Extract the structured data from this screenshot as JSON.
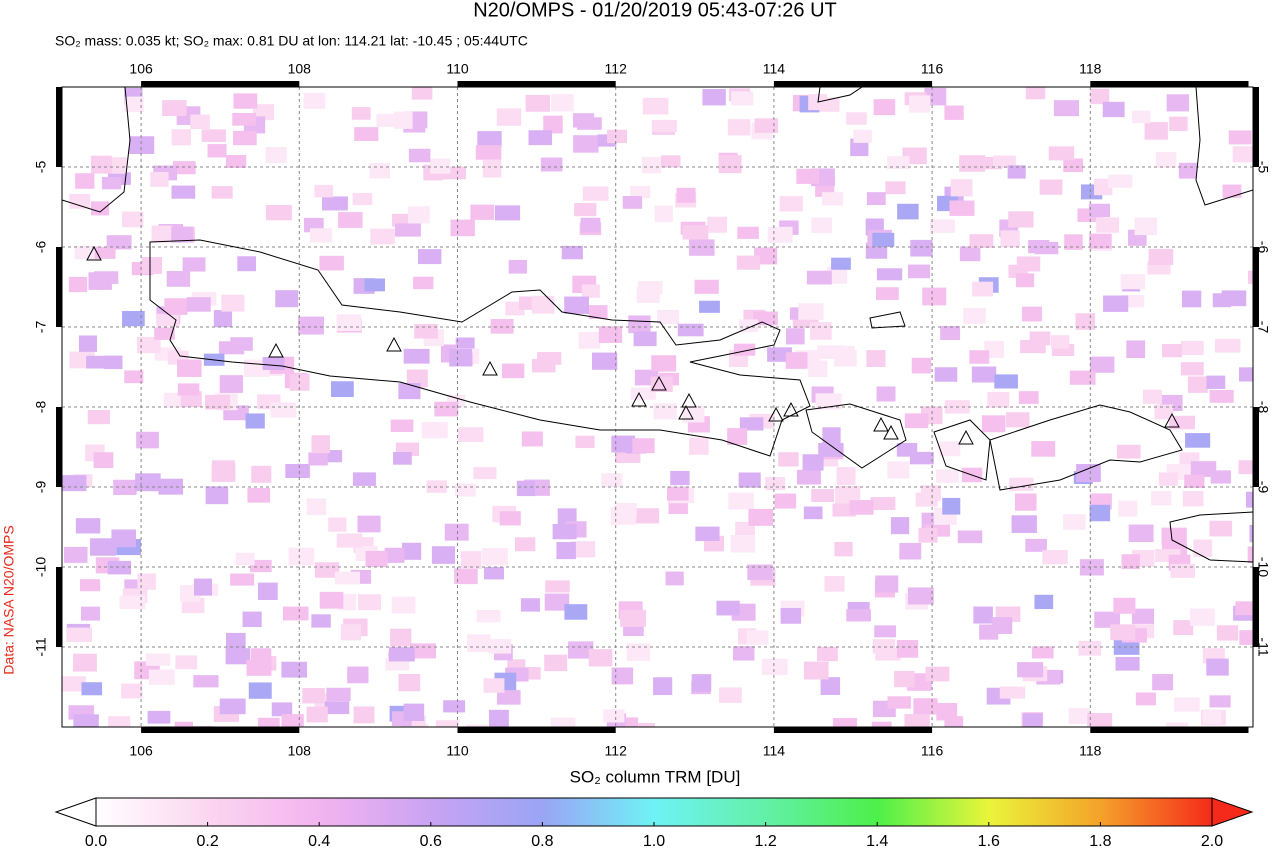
{
  "title": "N20/OMPS - 01/20/2019 05:43-07:26 UT",
  "subtitle": "SO₂ mass: 0.035 kt; SO₂ max: 0.81 DU at lon: 114.21 lat: -10.45 ; 05:44UTC",
  "map": {
    "lon_ticks": [
      106,
      108,
      110,
      112,
      114,
      116,
      118
    ],
    "lat_ticks": [
      -5,
      -6,
      -7,
      -8,
      -9,
      -10,
      -11
    ]
  },
  "colorbar": {
    "label": "SO₂ column TRM [DU]",
    "ticks": [
      {
        "value": 0,
        "label": "0.0"
      },
      {
        "value": 0.2,
        "label": "0.2"
      },
      {
        "value": 0.4,
        "label": "0.4"
      },
      {
        "value": 0.6,
        "label": "0.6"
      },
      {
        "value": 0.8,
        "label": "0.8"
      },
      {
        "value": 1,
        "label": "1.0"
      },
      {
        "value": 1.2,
        "label": "1.2"
      },
      {
        "value": 1.4,
        "label": "1.4"
      },
      {
        "value": 1.6,
        "label": "1.6"
      },
      {
        "value": 1.8,
        "label": "1.8"
      },
      {
        "value": 2,
        "label": "2.0"
      }
    ]
  },
  "credit": "Data: NASA N20/OMPS"
}
